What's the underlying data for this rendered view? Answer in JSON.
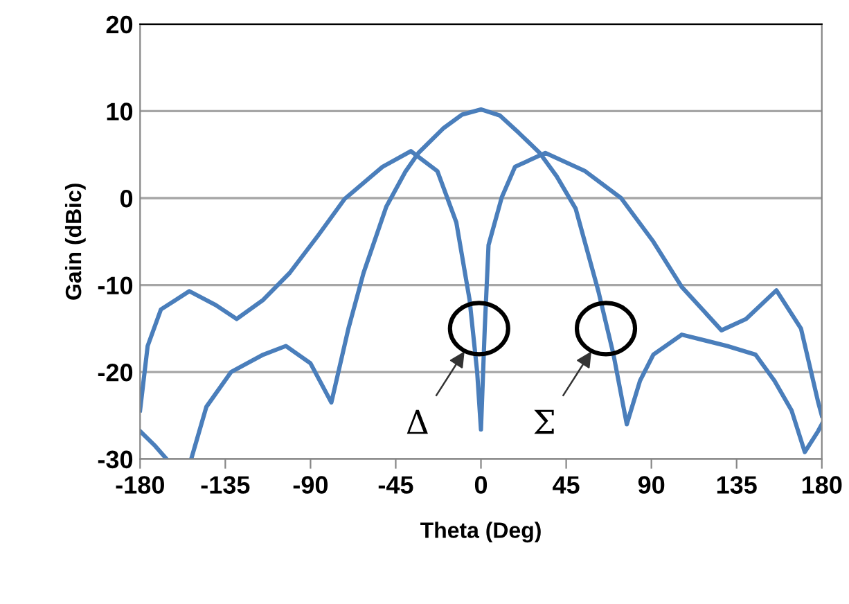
{
  "chart_data": {
    "type": "line",
    "xlabel": "Theta (Deg)",
    "ylabel": "Gain (dBic)",
    "xlim": [
      -180,
      180
    ],
    "ylim": [
      -30,
      20
    ],
    "xticks": [
      -180,
      -135,
      -90,
      -45,
      0,
      45,
      90,
      135,
      180
    ],
    "yticks": [
      -30,
      -20,
      -10,
      0,
      10,
      20
    ],
    "grid": "y",
    "legend": false,
    "marker": "none",
    "line_style": "solid",
    "series": [
      {
        "color": "#4a7ebb",
        "x": [
          -180,
          -176,
          -169,
          -154,
          -140,
          -129,
          -115,
          -101,
          -86,
          -72,
          -52,
          -37,
          -23,
          -13,
          -6,
          -2,
          0,
          2,
          4,
          11,
          18,
          34,
          55,
          74,
          91,
          106,
          127,
          140,
          156,
          169,
          178,
          180
        ],
        "values": [
          -24.4,
          -17,
          -12.8,
          -10.7,
          -12.3,
          -13.9,
          -11.7,
          -8.6,
          -4.3,
          -0.1,
          3.6,
          5.4,
          3.1,
          -2.8,
          -11.7,
          -20,
          -26.6,
          -15,
          -5.4,
          0.1,
          3.6,
          5.2,
          3.1,
          0,
          -5,
          -10.2,
          -15.2,
          -13.9,
          -10.6,
          -15,
          -23.4,
          -25
        ]
      },
      {
        "color": "#4a7ebb",
        "x": [
          -180,
          -172,
          -166,
          -160,
          -153,
          -145,
          -132,
          -115,
          -103,
          -90,
          -79,
          -70,
          -62,
          -50,
          -40,
          -33,
          -20,
          -10,
          0,
          10,
          20,
          31,
          40,
          50,
          62,
          70,
          77,
          84,
          91,
          106,
          130,
          145,
          155,
          164,
          171,
          178,
          180
        ],
        "values": [
          -26.8,
          -28.5,
          -30,
          null,
          -30,
          -24,
          -20,
          -18,
          -17,
          -19,
          -23.5,
          -15,
          -8.6,
          -1,
          3,
          5.2,
          8,
          9.6,
          10.2,
          9.5,
          7.5,
          5.2,
          2.5,
          -1.2,
          -10.7,
          -18,
          -26,
          -21,
          -18,
          -15.7,
          -17,
          -18,
          -21,
          -24.4,
          -29.2,
          -26.8,
          -26
        ]
      }
    ],
    "annotations": [
      {
        "text": "Δ",
        "x": -1,
        "y": -15
      },
      {
        "text": "Σ",
        "x": 66,
        "y": -15
      }
    ]
  }
}
